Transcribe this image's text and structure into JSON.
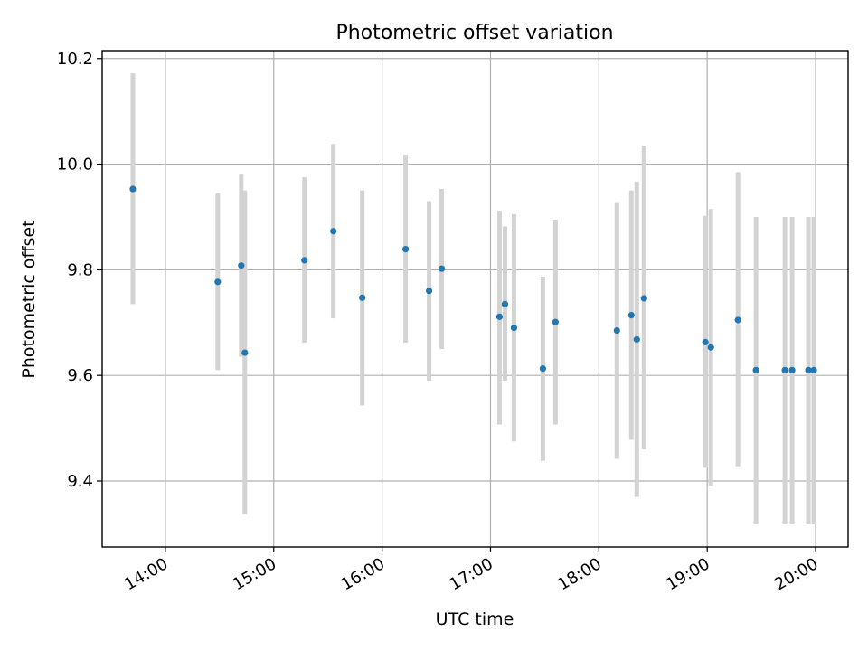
{
  "chart_data": {
    "type": "scatter",
    "title": "Photometric offset variation",
    "xlabel": "UTC time",
    "ylabel": "Photometric offset",
    "grid": true,
    "xlim": [
      "13:25",
      "20:18"
    ],
    "ylim": [
      9.275,
      10.215
    ],
    "x_ticks": [
      "14:00",
      "15:00",
      "16:00",
      "17:00",
      "18:00",
      "19:00",
      "20:00"
    ],
    "y_ticks": [
      "9.4",
      "9.6",
      "9.8",
      "10.0",
      "10.2"
    ],
    "point_color": "#1f77b4",
    "errorbar_color": "#d3d3d3",
    "points": [
      {
        "x": "13:42",
        "y": 9.953,
        "low": 9.735,
        "high": 10.172
      },
      {
        "x": "14:29",
        "y": 9.777,
        "low": 9.61,
        "high": 9.945
      },
      {
        "x": "14:42",
        "y": 9.808,
        "low": 9.635,
        "high": 9.982
      },
      {
        "x": "14:44",
        "y": 9.643,
        "low": 9.337,
        "high": 9.95
      },
      {
        "x": "15:17",
        "y": 9.818,
        "low": 9.662,
        "high": 9.975
      },
      {
        "x": "15:33",
        "y": 9.873,
        "low": 9.708,
        "high": 10.038
      },
      {
        "x": "15:49",
        "y": 9.747,
        "low": 9.543,
        "high": 9.95
      },
      {
        "x": "16:13",
        "y": 9.839,
        "low": 9.662,
        "high": 10.018
      },
      {
        "x": "16:26",
        "y": 9.76,
        "low": 9.59,
        "high": 9.93
      },
      {
        "x": "16:33",
        "y": 9.802,
        "low": 9.65,
        "high": 9.953
      },
      {
        "x": "17:05",
        "y": 9.711,
        "low": 9.507,
        "high": 9.912
      },
      {
        "x": "17:08",
        "y": 9.735,
        "low": 9.59,
        "high": 9.882
      },
      {
        "x": "17:13",
        "y": 9.69,
        "low": 9.475,
        "high": 9.905
      },
      {
        "x": "17:29",
        "y": 9.613,
        "low": 9.438,
        "high": 9.787
      },
      {
        "x": "17:36",
        "y": 9.701,
        "low": 9.507,
        "high": 9.895
      },
      {
        "x": "18:10",
        "y": 9.685,
        "low": 9.442,
        "high": 9.928
      },
      {
        "x": "18:18",
        "y": 9.714,
        "low": 9.478,
        "high": 9.95
      },
      {
        "x": "18:21",
        "y": 9.668,
        "low": 9.37,
        "high": 9.967
      },
      {
        "x": "18:25",
        "y": 9.746,
        "low": 9.46,
        "high": 10.035
      },
      {
        "x": "18:59",
        "y": 9.663,
        "low": 9.425,
        "high": 9.902
      },
      {
        "x": "19:02",
        "y": 9.653,
        "low": 9.39,
        "high": 9.915
      },
      {
        "x": "19:17",
        "y": 9.705,
        "low": 9.428,
        "high": 9.985
      },
      {
        "x": "19:27",
        "y": 9.61,
        "low": 9.318,
        "high": 9.9
      },
      {
        "x": "19:43",
        "y": 9.61,
        "low": 9.318,
        "high": 9.9
      },
      {
        "x": "19:47",
        "y": 9.61,
        "low": 9.318,
        "high": 9.9
      },
      {
        "x": "19:56",
        "y": 9.61,
        "low": 9.318,
        "high": 9.9
      },
      {
        "x": "19:59",
        "y": 9.61,
        "low": 9.318,
        "high": 9.9
      }
    ]
  }
}
